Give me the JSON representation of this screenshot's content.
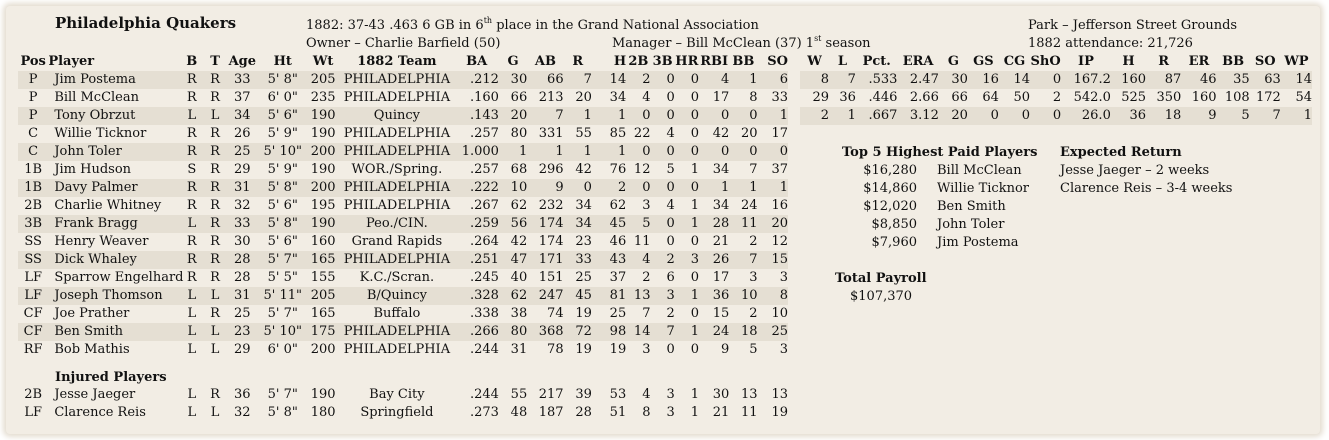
{
  "team": {
    "name": "Philadelphia Quakers",
    "record_line_pre": "1882:  37-43  .463  6 GB in 6",
    "record_line_sup": "th",
    "record_line_post": " place in the Grand National Association",
    "owner_line": "Owner – Charlie Barfield (50)",
    "manager_line": "Manager – Bill McClean (37)  1",
    "manager_sup": "st",
    "manager_post": " season",
    "park_line": "Park – Jefferson Street Grounds",
    "attendance_line": "1882 attendance:  21,726"
  },
  "batting_headers": [
    "Pos",
    "Player",
    "B",
    "T",
    "Age",
    "Ht",
    "Wt",
    "1882 Team",
    "BA",
    "G",
    "AB",
    "R",
    "H",
    "2B",
    "3B",
    "HR",
    "RBI",
    "BB",
    "SO"
  ],
  "players": [
    [
      "P",
      "Jim Postema",
      "R",
      "R",
      "33",
      "5' 8\"",
      "205",
      "PHILADELPHIA",
      ".212",
      "30",
      "66",
      "7",
      "14",
      "2",
      "0",
      "0",
      "4",
      "1",
      "6"
    ],
    [
      "P",
      "Bill McClean",
      "R",
      "R",
      "37",
      "6' 0\"",
      "235",
      "PHILADELPHIA",
      ".160",
      "66",
      "213",
      "20",
      "34",
      "4",
      "0",
      "0",
      "17",
      "8",
      "33"
    ],
    [
      "P",
      "Tony Obrzut",
      "L",
      "L",
      "34",
      "5' 6\"",
      "190",
      "Quincy",
      ".143",
      "20",
      "7",
      "1",
      "1",
      "0",
      "0",
      "0",
      "0",
      "0",
      "1"
    ],
    [
      "C",
      "Willie Ticknor",
      "R",
      "R",
      "26",
      "5' 9\"",
      "190",
      "PHILADELPHIA",
      ".257",
      "80",
      "331",
      "55",
      "85",
      "22",
      "4",
      "0",
      "42",
      "20",
      "17"
    ],
    [
      "C",
      "John Toler",
      "R",
      "R",
      "25",
      "5' 10\"",
      "200",
      "PHILADELPHIA",
      "1.000",
      "1",
      "1",
      "1",
      "1",
      "0",
      "0",
      "0",
      "0",
      "0",
      "0"
    ],
    [
      "1B",
      "Jim Hudson",
      "S",
      "R",
      "29",
      "5' 9\"",
      "190",
      "WOR./Spring.",
      ".257",
      "68",
      "296",
      "42",
      "76",
      "12",
      "5",
      "1",
      "34",
      "7",
      "37"
    ],
    [
      "1B",
      "Davy Palmer",
      "R",
      "R",
      "31",
      "5' 8\"",
      "200",
      "PHILADELPHIA",
      ".222",
      "10",
      "9",
      "0",
      "2",
      "0",
      "0",
      "0",
      "1",
      "1",
      "1"
    ],
    [
      "2B",
      "Charlie Whitney",
      "R",
      "R",
      "32",
      "5' 6\"",
      "195",
      "PHILADELPHIA",
      ".267",
      "62",
      "232",
      "34",
      "62",
      "3",
      "4",
      "1",
      "34",
      "24",
      "16"
    ],
    [
      "3B",
      "Frank Bragg",
      "L",
      "R",
      "33",
      "5' 8\"",
      "190",
      "Peo./CIN.",
      ".259",
      "56",
      "174",
      "34",
      "45",
      "5",
      "0",
      "1",
      "28",
      "11",
      "20"
    ],
    [
      "SS",
      "Henry Weaver",
      "R",
      "R",
      "30",
      "5' 6\"",
      "160",
      "Grand Rapids",
      ".264",
      "42",
      "174",
      "23",
      "46",
      "11",
      "0",
      "0",
      "21",
      "2",
      "12"
    ],
    [
      "SS",
      "Dick Whaley",
      "R",
      "R",
      "28",
      "5' 7\"",
      "165",
      "PHILADELPHIA",
      ".251",
      "47",
      "171",
      "33",
      "43",
      "4",
      "2",
      "3",
      "26",
      "7",
      "15"
    ],
    [
      "LF",
      "Sparrow Engelhard",
      "R",
      "R",
      "28",
      "5' 5\"",
      "155",
      "K.C./Scran.",
      ".245",
      "40",
      "151",
      "25",
      "37",
      "2",
      "6",
      "0",
      "17",
      "3",
      "3"
    ],
    [
      "LF",
      "Joseph Thomson",
      "L",
      "L",
      "31",
      "5' 11\"",
      "205",
      "B/Quincy",
      ".328",
      "62",
      "247",
      "45",
      "81",
      "13",
      "3",
      "1",
      "36",
      "10",
      "8"
    ],
    [
      "CF",
      "Joe Prather",
      "L",
      "R",
      "25",
      "5' 7\"",
      "165",
      "Buffalo",
      ".338",
      "38",
      "74",
      "19",
      "25",
      "7",
      "2",
      "0",
      "15",
      "2",
      "10"
    ],
    [
      "CF",
      "Ben Smith",
      "L",
      "L",
      "23",
      "5' 10\"",
      "175",
      "PHILADELPHIA",
      ".266",
      "80",
      "368",
      "72",
      "98",
      "14",
      "7",
      "1",
      "24",
      "18",
      "25"
    ],
    [
      "RF",
      "Bob Mathis",
      "L",
      "L",
      "29",
      "6' 0\"",
      "200",
      "PHILADELPHIA",
      ".244",
      "31",
      "78",
      "19",
      "19",
      "3",
      "0",
      "0",
      "9",
      "5",
      "3"
    ]
  ],
  "injured_title": "Injured Players",
  "injured": [
    [
      "2B",
      "Jesse Jaeger",
      "L",
      "R",
      "36",
      "5' 7\"",
      "190",
      "Bay City",
      ".244",
      "55",
      "217",
      "39",
      "53",
      "4",
      "3",
      "1",
      "30",
      "13",
      "13"
    ],
    [
      "LF",
      "Clarence Reis",
      "L",
      "L",
      "32",
      "5' 8\"",
      "180",
      "Springfield",
      ".273",
      "48",
      "187",
      "28",
      "51",
      "8",
      "3",
      "1",
      "21",
      "11",
      "19"
    ]
  ],
  "pitching_headers": [
    "W",
    "L",
    "Pct.",
    "ERA",
    "G",
    "GS",
    "CG",
    "ShO",
    "IP",
    "H",
    "R",
    "ER",
    "BB",
    "SO",
    "WP"
  ],
  "pitchers": [
    [
      "8",
      "7",
      ".533",
      "2.47",
      "30",
      "16",
      "14",
      "0",
      "167.2",
      "160",
      "87",
      "46",
      "35",
      "63",
      "14"
    ],
    [
      "29",
      "36",
      ".446",
      "2.66",
      "66",
      "64",
      "50",
      "2",
      "542.0",
      "525",
      "350",
      "160",
      "108",
      "172",
      "54"
    ],
    [
      "2",
      "1",
      ".667",
      "3.12",
      "20",
      "0",
      "0",
      "0",
      "26.0",
      "36",
      "18",
      "9",
      "5",
      "7",
      "1"
    ]
  ],
  "top_paid": {
    "title": "Top 5 Highest Paid Players",
    "rows": [
      {
        "salary": "$16,280",
        "name": "Bill McClean"
      },
      {
        "salary": "$14,860",
        "name": "Willie Ticknor"
      },
      {
        "salary": "$12,020",
        "name": "Ben Smith"
      },
      {
        "salary": "$8,850",
        "name": "John Toler"
      },
      {
        "salary": "$7,960",
        "name": "Jim Postema"
      }
    ]
  },
  "expected_return": {
    "title": "Expected Return",
    "rows": [
      "Jesse Jaeger – 2 weeks",
      "Clarence Reis – 3-4 weeks"
    ]
  },
  "payroll": {
    "title": "Total Payroll",
    "value": "$107,370"
  },
  "colors": {
    "background": "#f2ede4",
    "row_shade": "#e5dfd3"
  }
}
